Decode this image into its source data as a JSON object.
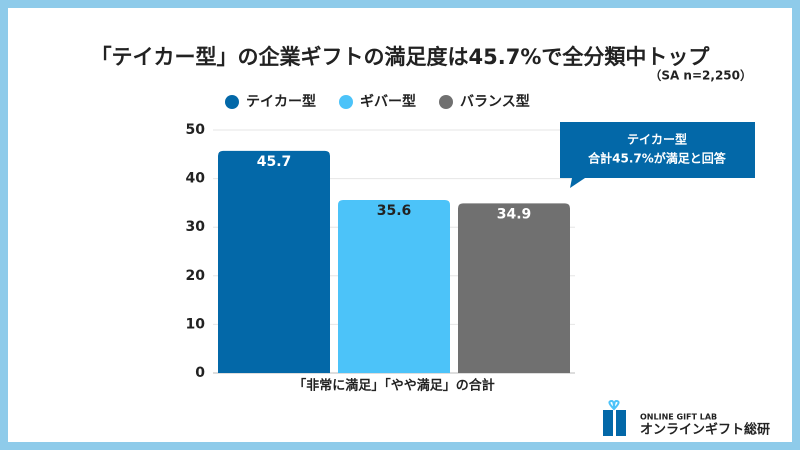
{
  "chart_data": {
    "type": "bar",
    "title": "「テイカー型」の企業ギフトの満足度は45.7%で全分類中トップ",
    "subtitle": "（SA n=2,250）",
    "categories": [
      "「非常に満足」「やや満足」の合計"
    ],
    "series": [
      {
        "name": "テイカー型",
        "color": "#0368a8",
        "label_color": "#ffffff",
        "values": [
          45.7
        ]
      },
      {
        "name": "ギバー型",
        "color": "#4cc3f9",
        "label_color": "#222222",
        "values": [
          35.6
        ]
      },
      {
        "name": "バランス型",
        "color": "#707070",
        "label_color": "#ffffff",
        "values": [
          34.9
        ]
      }
    ],
    "ylim": [
      0,
      50
    ],
    "yticks": [
      0,
      10,
      20,
      30,
      40,
      50
    ],
    "grid": true,
    "legend": "top",
    "annotation": {
      "lines": [
        "テイカー型",
        "合計45.7%が満足と回答"
      ],
      "color": "#0368a8"
    }
  },
  "brand": {
    "label_en": "ONLINE GIFT LAB",
    "label_ja": "オンラインギフト総研"
  }
}
